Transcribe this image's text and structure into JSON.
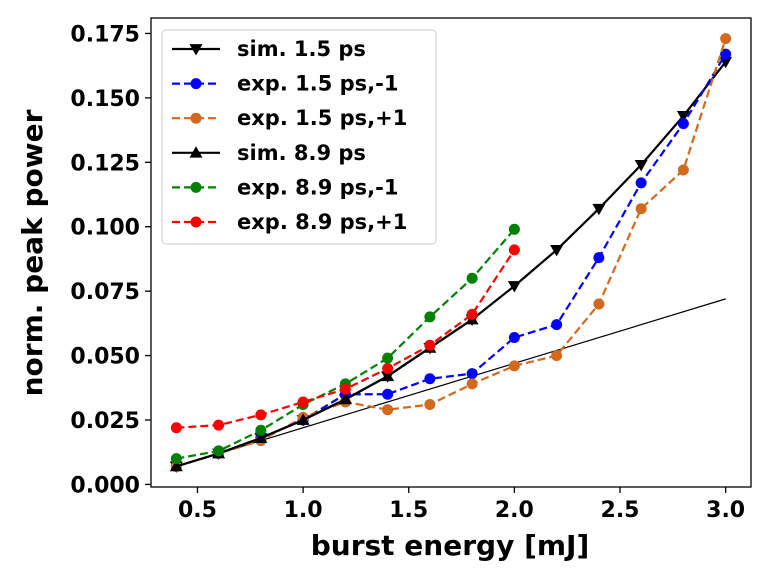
{
  "chart_data": {
    "type": "line",
    "title": "",
    "xlabel": "burst energy [mJ]",
    "ylabel": "norm. peak power",
    "xlim": [
      0.28,
      3.12
    ],
    "ylim": [
      -0.001,
      0.181
    ],
    "xticks": [
      0.5,
      1.0,
      1.5,
      2.0,
      2.5,
      3.0
    ],
    "xtick_labels": [
      "0.5",
      "1.0",
      "1.5",
      "2.0",
      "2.5",
      "3.0"
    ],
    "yticks": [
      0.0,
      0.025,
      0.05,
      0.075,
      0.1,
      0.125,
      0.15,
      0.175
    ],
    "ytick_labels": [
      "0.000",
      "0.025",
      "0.050",
      "0.075",
      "0.100",
      "0.125",
      "0.150",
      "0.175"
    ],
    "grid": false,
    "legend_position": "top-left",
    "series": [
      {
        "name": "sim. 1.5 ps",
        "color": "#000000",
        "dash": "solid",
        "marker": "triangle-down",
        "x": [
          0.4,
          0.6,
          0.8,
          1.0,
          1.2,
          1.4,
          1.6,
          1.8,
          2.0,
          2.2,
          2.4,
          2.6,
          2.8,
          3.0
        ],
        "y": [
          0.007,
          0.012,
          0.018,
          0.025,
          0.033,
          0.042,
          0.053,
          0.064,
          0.077,
          0.091,
          0.107,
          0.124,
          0.143,
          0.164
        ]
      },
      {
        "name": "exp. 1.5 ps,-1",
        "color": "#0000ff",
        "dash": "dashed",
        "marker": "circle",
        "x": [
          0.4,
          0.6,
          0.8,
          1.0,
          1.2,
          1.4,
          1.6,
          1.8,
          2.0,
          2.2,
          2.4,
          2.6,
          2.8,
          3.0
        ],
        "y": [
          0.007,
          0.012,
          0.018,
          0.025,
          0.035,
          0.035,
          0.041,
          0.043,
          0.057,
          0.062,
          0.088,
          0.117,
          0.14,
          0.167
        ]
      },
      {
        "name": "exp. 1.5 ps,+1",
        "color": "#d2691e",
        "dash": "dashed",
        "marker": "circle",
        "x": [
          0.4,
          0.6,
          0.8,
          1.0,
          1.2,
          1.4,
          1.6,
          1.8,
          2.0,
          2.2,
          2.4,
          2.6,
          2.8,
          3.0
        ],
        "y": [
          0.007,
          0.012,
          0.017,
          0.026,
          0.032,
          0.029,
          0.031,
          0.039,
          0.046,
          0.05,
          0.07,
          0.107,
          0.122,
          0.173
        ]
      },
      {
        "name": "sim. 8.9 ps",
        "color": "#000000",
        "dash": "solid",
        "marker": "triangle-up",
        "x": [
          0.4,
          0.6,
          0.8,
          1.0,
          1.2,
          1.4,
          1.6,
          1.8
        ],
        "y": [
          0.007,
          0.012,
          0.018,
          0.025,
          0.033,
          0.042,
          0.053,
          0.064
        ]
      },
      {
        "name": "exp. 8.9 ps,-1",
        "color": "#008000",
        "dash": "dashed",
        "marker": "circle",
        "x": [
          0.4,
          0.6,
          0.8,
          1.0,
          1.2,
          1.4,
          1.6,
          1.8,
          2.0
        ],
        "y": [
          0.01,
          0.013,
          0.021,
          0.031,
          0.039,
          0.049,
          0.065,
          0.08,
          0.099
        ]
      },
      {
        "name": "exp. 8.9 ps,+1",
        "color": "#ff0000",
        "dash": "dashed",
        "marker": "circle",
        "x": [
          0.4,
          0.6,
          0.8,
          1.0,
          1.2,
          1.4,
          1.6,
          1.8,
          2.0
        ],
        "y": [
          0.022,
          0.023,
          0.027,
          0.032,
          0.037,
          0.045,
          0.054,
          0.066,
          0.091
        ]
      }
    ],
    "reference_line": {
      "color": "#000000",
      "dash": "solid",
      "marker": "none",
      "x": [
        0.6,
        3.0
      ],
      "y": [
        0.012,
        0.072
      ]
    }
  }
}
